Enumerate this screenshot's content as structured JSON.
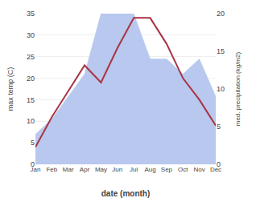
{
  "chart_data": {
    "type": "line",
    "categories": [
      "Jan",
      "Feb",
      "Mar",
      "Apr",
      "May",
      "Jun",
      "Jul",
      "Aug",
      "Sep",
      "Oct",
      "Nov",
      "Dec"
    ],
    "series": [
      {
        "type": "area",
        "color": "#b8c8ee",
        "values": [
          7,
          10.5,
          15.75,
          21,
          35,
          35,
          35,
          24.5,
          24.5,
          21,
          24.5,
          15.75
        ]
      },
      {
        "type": "line",
        "color": "#aa3344",
        "values": [
          4,
          11,
          17,
          23,
          19,
          27,
          34,
          34,
          28,
          20,
          15,
          9
        ]
      }
    ],
    "xlabel": "date (month)",
    "ylabel": "max temp (C)",
    "y2label": "med. precipitation (kg/m2)",
    "ylim": [
      0,
      35
    ],
    "yticks": [
      0,
      5,
      10,
      15,
      20,
      25,
      30,
      35
    ],
    "y2lim": [
      0,
      20
    ],
    "y2ticks": [
      0,
      5,
      10,
      15,
      20
    ],
    "grid": true
  }
}
